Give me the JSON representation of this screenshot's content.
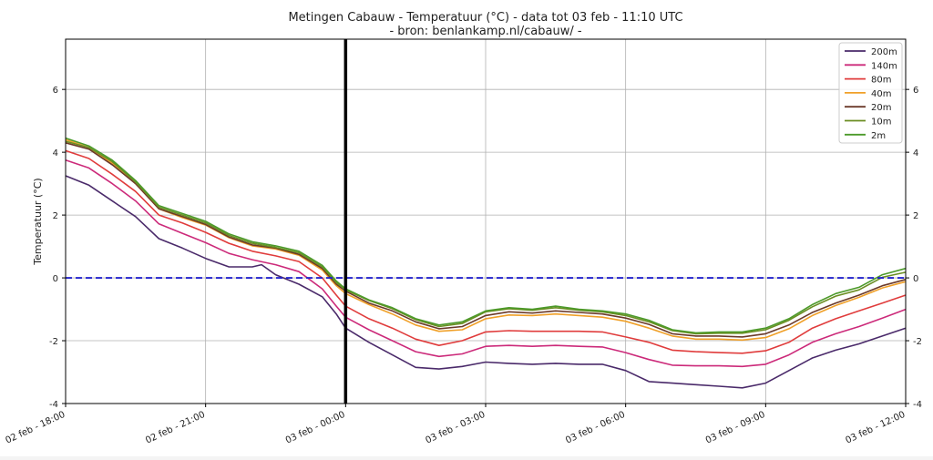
{
  "chart_data": {
    "type": "line",
    "title": "Metingen Cabauw - Temperatuur (°C) - data tot 03 feb - 11:10 UTC",
    "subtitle": "- bron: benlankamp.nl/cabauw/ -",
    "xlabel": "",
    "ylabel": "Temperatuur (°C)",
    "ylim": [
      -4,
      7.6
    ],
    "xlim_hours": [
      0,
      18
    ],
    "x_unit": "hours since 02 feb - 18:00 UTC",
    "xticks": [
      {
        "h": 0,
        "label": "02 feb - 18:00"
      },
      {
        "h": 3,
        "label": "02 feb - 21:00"
      },
      {
        "h": 6,
        "label": "03 feb - 00:00"
      },
      {
        "h": 9,
        "label": "03 feb - 03:00"
      },
      {
        "h": 12,
        "label": "03 feb - 06:00"
      },
      {
        "h": 15,
        "label": "03 feb - 09:00"
      },
      {
        "h": 18,
        "label": "03 feb - 12:00"
      }
    ],
    "yticks": [
      -4,
      -2,
      0,
      2,
      4,
      6
    ],
    "grid": true,
    "legend_position": "top-right",
    "reference_line": {
      "y": 0,
      "style": "dashed",
      "color": "#2222cc"
    },
    "vertical_marker": {
      "h": 6,
      "color": "#000000"
    },
    "series": [
      {
        "name": "2m",
        "color": "#4c9a2a",
        "points": [
          [
            0,
            4.45
          ],
          [
            0.5,
            4.2
          ],
          [
            1,
            3.75
          ],
          [
            1.5,
            3.1
          ],
          [
            2,
            2.3
          ],
          [
            2.5,
            2.05
          ],
          [
            3,
            1.8
          ],
          [
            3.5,
            1.4
          ],
          [
            4,
            1.15
          ],
          [
            4.5,
            1.02
          ],
          [
            5,
            0.85
          ],
          [
            5.5,
            0.4
          ],
          [
            5.8,
            -0.1
          ],
          [
            6,
            -0.35
          ],
          [
            6.5,
            -0.7
          ],
          [
            7,
            -0.95
          ],
          [
            7.5,
            -1.3
          ],
          [
            8,
            -1.5
          ],
          [
            8.5,
            -1.4
          ],
          [
            9,
            -1.05
          ],
          [
            9.5,
            -0.95
          ],
          [
            10,
            -1.0
          ],
          [
            10.5,
            -0.9
          ],
          [
            11,
            -1.0
          ],
          [
            11.5,
            -1.05
          ],
          [
            12,
            -1.15
          ],
          [
            12.5,
            -1.35
          ],
          [
            13,
            -1.65
          ],
          [
            13.5,
            -1.75
          ],
          [
            14,
            -1.72
          ],
          [
            14.5,
            -1.72
          ],
          [
            15,
            -1.6
          ],
          [
            15.5,
            -1.3
          ],
          [
            16,
            -0.85
          ],
          [
            16.5,
            -0.5
          ],
          [
            17,
            -0.3
          ],
          [
            17.5,
            0.1
          ],
          [
            18,
            0.3
          ]
        ]
      },
      {
        "name": "10m",
        "color": "#6b8e23",
        "points": [
          [
            0,
            4.35
          ],
          [
            0.5,
            4.15
          ],
          [
            1,
            3.7
          ],
          [
            1.5,
            3.05
          ],
          [
            2,
            2.25
          ],
          [
            2.5,
            2.0
          ],
          [
            3,
            1.75
          ],
          [
            3.5,
            1.35
          ],
          [
            4,
            1.1
          ],
          [
            4.5,
            0.97
          ],
          [
            5,
            0.8
          ],
          [
            5.5,
            0.35
          ],
          [
            5.8,
            -0.15
          ],
          [
            6,
            -0.38
          ],
          [
            6.5,
            -0.72
          ],
          [
            7,
            -0.98
          ],
          [
            7.5,
            -1.33
          ],
          [
            8,
            -1.55
          ],
          [
            8.5,
            -1.45
          ],
          [
            9,
            -1.08
          ],
          [
            9.5,
            -0.98
          ],
          [
            10,
            -1.03
          ],
          [
            10.5,
            -0.95
          ],
          [
            11,
            -1.03
          ],
          [
            11.5,
            -1.08
          ],
          [
            12,
            -1.2
          ],
          [
            12.5,
            -1.4
          ],
          [
            13,
            -1.68
          ],
          [
            13.5,
            -1.78
          ],
          [
            14,
            -1.76
          ],
          [
            14.5,
            -1.76
          ],
          [
            15,
            -1.65
          ],
          [
            15.5,
            -1.35
          ],
          [
            16,
            -0.92
          ],
          [
            16.5,
            -0.58
          ],
          [
            17,
            -0.38
          ],
          [
            17.5,
            0.02
          ],
          [
            18,
            0.18
          ]
        ]
      },
      {
        "name": "20m",
        "color": "#6b3a2a",
        "points": [
          [
            0,
            4.3
          ],
          [
            0.5,
            4.1
          ],
          [
            1,
            3.6
          ],
          [
            1.5,
            3.0
          ],
          [
            2,
            2.2
          ],
          [
            2.5,
            1.95
          ],
          [
            3,
            1.7
          ],
          [
            3.5,
            1.3
          ],
          [
            4,
            1.05
          ],
          [
            4.5,
            0.95
          ],
          [
            5,
            0.75
          ],
          [
            5.5,
            0.3
          ],
          [
            5.8,
            -0.2
          ],
          [
            6,
            -0.42
          ],
          [
            6.5,
            -0.8
          ],
          [
            7,
            -1.05
          ],
          [
            7.5,
            -1.4
          ],
          [
            8,
            -1.62
          ],
          [
            8.5,
            -1.55
          ],
          [
            9,
            -1.2
          ],
          [
            9.5,
            -1.08
          ],
          [
            10,
            -1.12
          ],
          [
            10.5,
            -1.05
          ],
          [
            11,
            -1.1
          ],
          [
            11.5,
            -1.15
          ],
          [
            12,
            -1.28
          ],
          [
            12.5,
            -1.48
          ],
          [
            13,
            -1.78
          ],
          [
            13.5,
            -1.85
          ],
          [
            14,
            -1.85
          ],
          [
            14.5,
            -1.88
          ],
          [
            15,
            -1.78
          ],
          [
            15.5,
            -1.5
          ],
          [
            16,
            -1.1
          ],
          [
            16.5,
            -0.8
          ],
          [
            17,
            -0.55
          ],
          [
            17.5,
            -0.25
          ],
          [
            18,
            -0.05
          ]
        ]
      },
      {
        "name": "40m",
        "color": "#f0a028",
        "points": [
          [
            0,
            4.4
          ],
          [
            0.5,
            4.15
          ],
          [
            1,
            3.65
          ],
          [
            1.5,
            3.0
          ],
          [
            2,
            2.2
          ],
          [
            2.5,
            1.92
          ],
          [
            3,
            1.68
          ],
          [
            3.5,
            1.28
          ],
          [
            4,
            1.02
          ],
          [
            4.5,
            0.92
          ],
          [
            5,
            0.72
          ],
          [
            5.5,
            0.25
          ],
          [
            5.8,
            -0.25
          ],
          [
            6,
            -0.5
          ],
          [
            6.5,
            -0.85
          ],
          [
            7,
            -1.15
          ],
          [
            7.5,
            -1.5
          ],
          [
            8,
            -1.7
          ],
          [
            8.5,
            -1.65
          ],
          [
            9,
            -1.3
          ],
          [
            9.5,
            -1.18
          ],
          [
            10,
            -1.2
          ],
          [
            10.5,
            -1.15
          ],
          [
            11,
            -1.2
          ],
          [
            11.5,
            -1.25
          ],
          [
            12,
            -1.38
          ],
          [
            12.5,
            -1.6
          ],
          [
            13,
            -1.85
          ],
          [
            13.5,
            -1.95
          ],
          [
            14,
            -1.95
          ],
          [
            14.5,
            -1.98
          ],
          [
            15,
            -1.9
          ],
          [
            15.5,
            -1.62
          ],
          [
            16,
            -1.2
          ],
          [
            16.5,
            -0.88
          ],
          [
            17,
            -0.62
          ],
          [
            17.5,
            -0.32
          ],
          [
            18,
            -0.12
          ]
        ]
      },
      {
        "name": "80m",
        "color": "#e03c3c",
        "points": [
          [
            0,
            4.05
          ],
          [
            0.5,
            3.8
          ],
          [
            1,
            3.3
          ],
          [
            1.5,
            2.75
          ],
          [
            2,
            2.0
          ],
          [
            2.5,
            1.75
          ],
          [
            3,
            1.45
          ],
          [
            3.5,
            1.1
          ],
          [
            4,
            0.85
          ],
          [
            4.5,
            0.7
          ],
          [
            5,
            0.52
          ],
          [
            5.5,
            0.0
          ],
          [
            5.8,
            -0.55
          ],
          [
            6,
            -0.9
          ],
          [
            6.5,
            -1.3
          ],
          [
            7,
            -1.6
          ],
          [
            7.5,
            -1.95
          ],
          [
            8,
            -2.15
          ],
          [
            8.5,
            -2.0
          ],
          [
            9,
            -1.72
          ],
          [
            9.5,
            -1.68
          ],
          [
            10,
            -1.7
          ],
          [
            10.5,
            -1.7
          ],
          [
            11,
            -1.7
          ],
          [
            11.5,
            -1.72
          ],
          [
            12,
            -1.88
          ],
          [
            12.5,
            -2.05
          ],
          [
            13,
            -2.3
          ],
          [
            13.5,
            -2.35
          ],
          [
            14,
            -2.38
          ],
          [
            14.5,
            -2.4
          ],
          [
            15,
            -2.32
          ],
          [
            15.5,
            -2.05
          ],
          [
            16,
            -1.6
          ],
          [
            16.5,
            -1.3
          ],
          [
            17,
            -1.05
          ],
          [
            17.5,
            -0.8
          ],
          [
            18,
            -0.55
          ]
        ]
      },
      {
        "name": "140m",
        "color": "#cc2a7a",
        "points": [
          [
            0,
            3.75
          ],
          [
            0.5,
            3.5
          ],
          [
            1,
            3.0
          ],
          [
            1.5,
            2.45
          ],
          [
            2,
            1.72
          ],
          [
            2.5,
            1.42
          ],
          [
            3,
            1.12
          ],
          [
            3.5,
            0.78
          ],
          [
            4,
            0.58
          ],
          [
            4.5,
            0.42
          ],
          [
            5,
            0.2
          ],
          [
            5.5,
            -0.35
          ],
          [
            5.8,
            -0.9
          ],
          [
            6,
            -1.25
          ],
          [
            6.5,
            -1.65
          ],
          [
            7,
            -2.0
          ],
          [
            7.5,
            -2.35
          ],
          [
            8,
            -2.5
          ],
          [
            8.5,
            -2.42
          ],
          [
            9,
            -2.18
          ],
          [
            9.5,
            -2.15
          ],
          [
            10,
            -2.18
          ],
          [
            10.5,
            -2.15
          ],
          [
            11,
            -2.18
          ],
          [
            11.5,
            -2.2
          ],
          [
            12,
            -2.38
          ],
          [
            12.5,
            -2.6
          ],
          [
            13,
            -2.78
          ],
          [
            13.5,
            -2.8
          ],
          [
            14,
            -2.8
          ],
          [
            14.5,
            -2.82
          ],
          [
            15,
            -2.75
          ],
          [
            15.5,
            -2.45
          ],
          [
            16,
            -2.05
          ],
          [
            16.5,
            -1.78
          ],
          [
            17,
            -1.55
          ],
          [
            17.5,
            -1.28
          ],
          [
            18,
            -1.0
          ]
        ]
      },
      {
        "name": "200m",
        "color": "#4a2a6a",
        "points": [
          [
            0,
            3.25
          ],
          [
            0.5,
            2.95
          ],
          [
            1,
            2.45
          ],
          [
            1.5,
            1.95
          ],
          [
            2,
            1.25
          ],
          [
            2.5,
            0.95
          ],
          [
            3,
            0.62
          ],
          [
            3.5,
            0.35
          ],
          [
            4,
            0.35
          ],
          [
            4.2,
            0.42
          ],
          [
            4.5,
            0.1
          ],
          [
            5,
            -0.2
          ],
          [
            5.5,
            -0.6
          ],
          [
            5.8,
            -1.15
          ],
          [
            6,
            -1.6
          ],
          [
            6.5,
            -2.05
          ],
          [
            7,
            -2.45
          ],
          [
            7.5,
            -2.85
          ],
          [
            8,
            -2.9
          ],
          [
            8.5,
            -2.82
          ],
          [
            9,
            -2.68
          ],
          [
            9.5,
            -2.72
          ],
          [
            10,
            -2.75
          ],
          [
            10.5,
            -2.72
          ],
          [
            11,
            -2.75
          ],
          [
            11.5,
            -2.75
          ],
          [
            12,
            -2.95
          ],
          [
            12.5,
            -3.3
          ],
          [
            13,
            -3.35
          ],
          [
            13.5,
            -3.4
          ],
          [
            14,
            -3.45
          ],
          [
            14.5,
            -3.5
          ],
          [
            15,
            -3.35
          ],
          [
            15.5,
            -2.95
          ],
          [
            16,
            -2.55
          ],
          [
            16.5,
            -2.3
          ],
          [
            17,
            -2.1
          ],
          [
            17.5,
            -1.85
          ],
          [
            18,
            -1.6
          ]
        ]
      }
    ],
    "legend_order": [
      "200m",
      "140m",
      "80m",
      "40m",
      "20m",
      "10m",
      "2m"
    ]
  }
}
